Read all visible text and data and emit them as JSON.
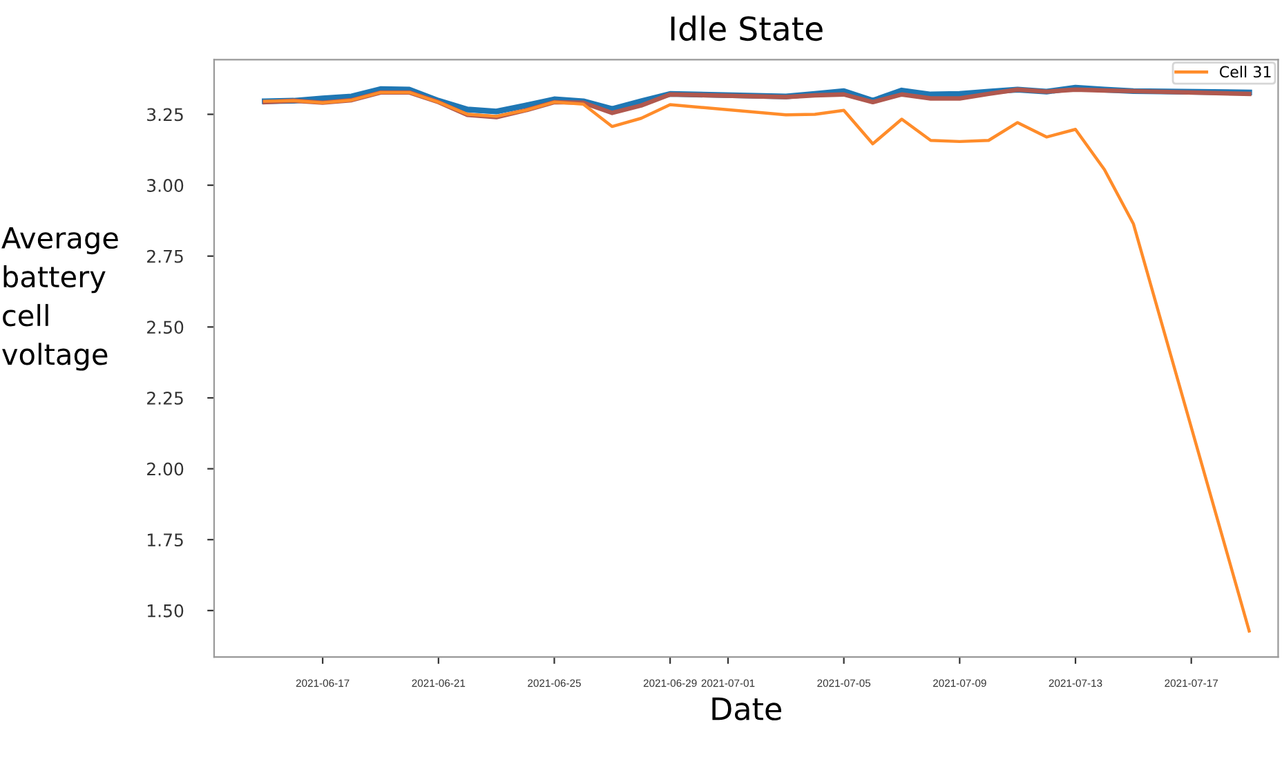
{
  "chart_data": {
    "type": "line",
    "title": "Idle State",
    "xlabel": "Date",
    "ylabel": "Average\nbattery\ncell\nvoltage",
    "x": [
      "2021-06-15",
      "2021-06-16",
      "2021-06-17",
      "2021-06-18",
      "2021-06-19",
      "2021-06-20",
      "2021-06-21",
      "2021-06-22",
      "2021-06-23",
      "2021-06-24",
      "2021-06-25",
      "2021-06-26",
      "2021-06-27",
      "2021-06-28",
      "2021-06-29",
      "2021-07-03",
      "2021-07-04",
      "2021-07-05",
      "2021-07-06",
      "2021-07-07",
      "2021-07-08",
      "2021-07-09",
      "2021-07-10",
      "2021-07-11",
      "2021-07-12",
      "2021-07-13",
      "2021-07-14",
      "2021-07-15",
      "2021-07-19"
    ],
    "series": [
      {
        "color": "#1f77b4",
        "values": [
          3.296,
          3.298,
          3.306,
          3.313,
          3.339,
          3.337,
          3.298,
          3.267,
          3.26,
          3.281,
          3.303,
          3.296,
          3.269,
          3.296,
          3.322,
          3.313,
          3.322,
          3.332,
          3.298,
          3.334,
          3.32,
          3.322,
          3.33,
          3.337,
          3.33,
          3.344,
          3.337,
          3.332,
          3.327
        ]
      },
      {
        "color": "#b0584e",
        "values": [
          3.293,
          3.298,
          3.291,
          3.3,
          3.327,
          3.327,
          3.293,
          3.248,
          3.24,
          3.264,
          3.293,
          3.291,
          3.255,
          3.281,
          3.32,
          3.311,
          3.317,
          3.32,
          3.293,
          3.32,
          3.306,
          3.306,
          3.322,
          3.337,
          3.33,
          3.337,
          3.334,
          3.332,
          3.322
        ]
      },
      {
        "name": "Cell 31",
        "color": "#ff8c2a",
        "values": [
          3.296,
          3.298,
          3.291,
          3.3,
          3.327,
          3.327,
          3.293,
          3.25,
          3.243,
          3.264,
          3.293,
          3.286,
          3.207,
          3.236,
          3.284,
          3.248,
          3.25,
          3.264,
          3.146,
          3.233,
          3.158,
          3.154,
          3.158,
          3.221,
          3.17,
          3.197,
          3.055,
          2.864,
          1.428
        ]
      }
    ],
    "xlim": [
      "2021-06-13T06:00",
      "2021-07-20T00:00"
    ],
    "xticks": [
      "2021-06-17",
      "2021-06-21",
      "2021-06-25",
      "2021-06-29",
      "2021-07-01",
      "2021-07-05",
      "2021-07-09",
      "2021-07-13",
      "2021-07-17"
    ],
    "ylim": [
      1.336,
      3.443
    ],
    "yticks": [
      {
        "value": 1.5,
        "label": "1.50"
      },
      {
        "value": 1.75,
        "label": "1.75"
      },
      {
        "value": 2.0,
        "label": "2.00"
      },
      {
        "value": 2.25,
        "label": "2.25"
      },
      {
        "value": 2.5,
        "label": "2.50"
      },
      {
        "value": 2.75,
        "label": "2.75"
      },
      {
        "value": 3.0,
        "label": "3.00"
      },
      {
        "value": 3.25,
        "label": "3.25"
      }
    ],
    "grid": false,
    "legend": "top right",
    "marker": "none",
    "line_style": "solid"
  }
}
